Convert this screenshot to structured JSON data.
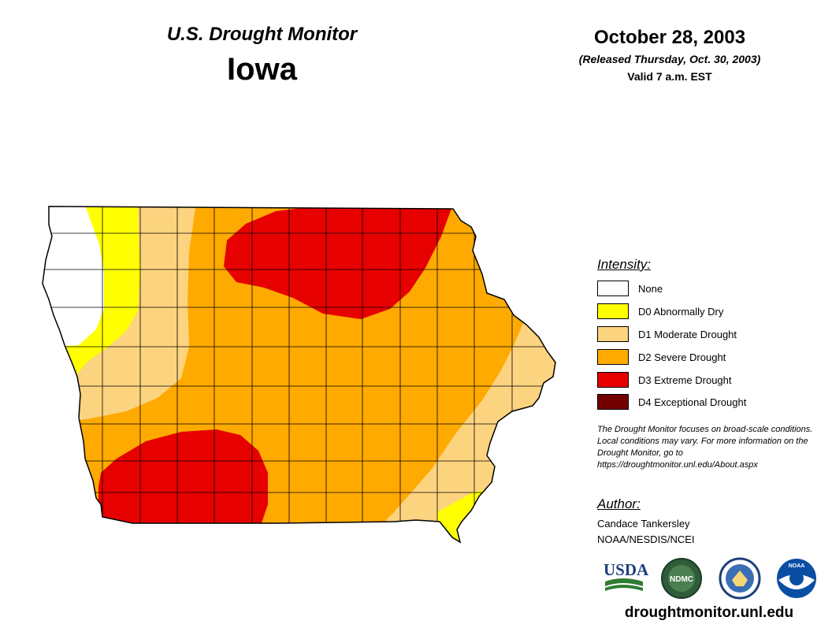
{
  "header": {
    "title": "U.S. Drought Monitor",
    "state": "Iowa",
    "date": "October 28, 2003",
    "released": "(Released Thursday, Oct. 30, 2003)",
    "valid": "Valid 7 a.m. EST"
  },
  "legend": {
    "title": "Intensity:",
    "items": [
      {
        "label": "None",
        "color": "#ffffff"
      },
      {
        "label": "D0 Abnormally Dry",
        "color": "#ffff00"
      },
      {
        "label": "D1 Moderate Drought",
        "color": "#fcd37f"
      },
      {
        "label": "D2 Severe Drought",
        "color": "#ffaa00"
      },
      {
        "label": "D3 Extreme Drought",
        "color": "#e60000"
      },
      {
        "label": "D4 Exceptional Drought",
        "color": "#730000"
      }
    ]
  },
  "note": "The Drought Monitor focuses on broad-scale conditions. Local conditions may vary. For more information on the Drought Monitor, go to https://droughtmonitor.unl.edu/About.aspx",
  "author": {
    "title": "Author:",
    "name": "Candace Tankersley",
    "org": "NOAA/NESDIS/NCEI"
  },
  "logos": {
    "usda": "USDA",
    "ndmc": "NDMC",
    "noaa": "NOAA"
  },
  "footer": {
    "url": "droughtmonitor.unl.edu"
  }
}
